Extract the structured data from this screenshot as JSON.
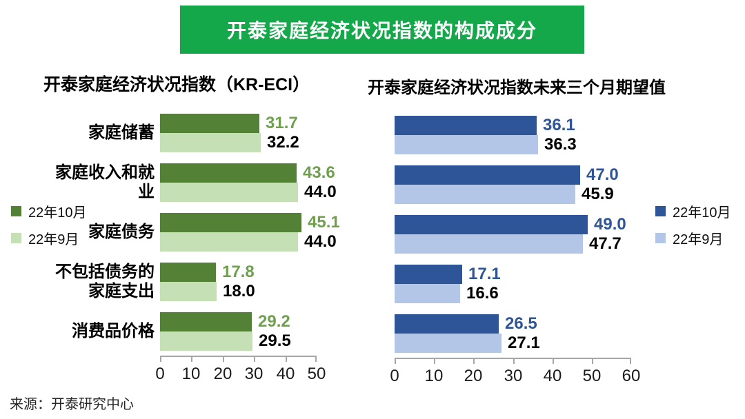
{
  "header": {
    "title": "开泰家庭经济状况指数的构成成分",
    "banner_color": "#14a84b"
  },
  "source": "来源：开泰研究中心",
  "chart_data": [
    {
      "type": "bar",
      "orientation": "horizontal",
      "title": "开泰家庭经济状况指数（KR-ECI）",
      "categories": [
        "家庭储蓄",
        "家庭收入和就业",
        "家庭债务",
        "不包括债务的\n家庭支出",
        "消费品价格"
      ],
      "series": [
        {
          "name": "22年10月",
          "color": "#538135",
          "label_color": "#6fa04e",
          "values": [
            31.7,
            43.6,
            45.1,
            17.8,
            29.2
          ],
          "value_labels": [
            "31.7",
            "43.6",
            "45.1",
            "17.8",
            "29.2"
          ]
        },
        {
          "name": "22年9月",
          "color": "#c5e0b4",
          "label_color": "#000000",
          "values": [
            32.2,
            44.0,
            44.0,
            18.0,
            29.5
          ],
          "value_labels": [
            "32.2",
            "44.0",
            "44.0",
            "18.0",
            "29.5"
          ]
        }
      ],
      "xlim": [
        0,
        50
      ],
      "xticks": [
        0,
        10,
        20,
        30,
        40,
        50
      ],
      "grid": false,
      "legend_position": "left-middle"
    },
    {
      "type": "bar",
      "orientation": "horizontal",
      "title": "开泰家庭经济状况指数未来三个月期望值",
      "categories": [
        "",
        "",
        "",
        "",
        ""
      ],
      "series": [
        {
          "name": "22年10月",
          "color": "#2e5597",
          "label_color": "#2f5597",
          "values": [
            36.1,
            47.0,
            49.0,
            17.1,
            26.5
          ],
          "value_labels": [
            "36.1",
            "47.0",
            "49.0",
            "17.1",
            "26.5"
          ]
        },
        {
          "name": "22年9月",
          "color": "#b4c6e7",
          "label_color": "#000000",
          "values": [
            36.3,
            45.9,
            47.7,
            16.6,
            27.1
          ],
          "value_labels": [
            "36.3",
            "45.9",
            "47.7",
            "16.6",
            "27.1"
          ]
        }
      ],
      "xlim": [
        0,
        60
      ],
      "xticks": [
        0,
        10,
        20,
        30,
        40,
        50,
        60
      ],
      "grid": false,
      "legend_position": "right-middle"
    }
  ]
}
